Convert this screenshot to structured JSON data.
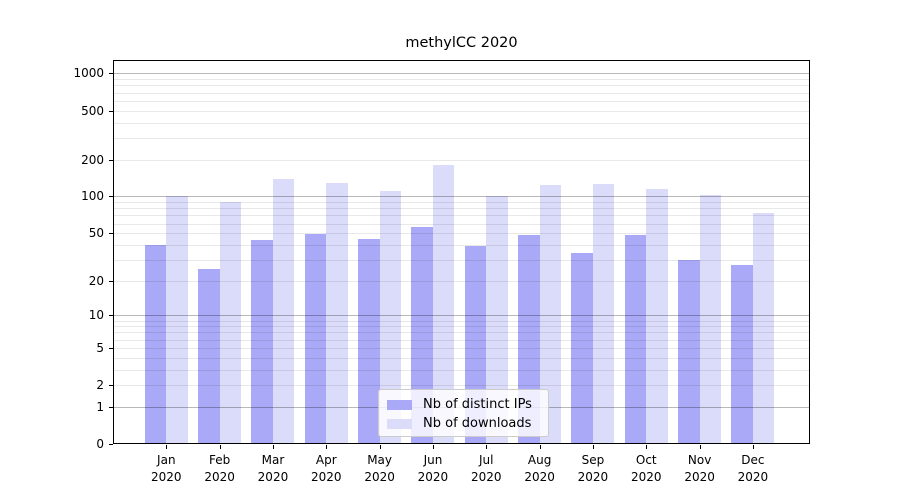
{
  "chart_data": {
    "type": "bar",
    "title": "methylCC 2020",
    "categories": [
      "Jan",
      "Feb",
      "Mar",
      "Apr",
      "May",
      "Jun",
      "Jul",
      "Aug",
      "Sep",
      "Oct",
      "Nov",
      "Dec"
    ],
    "year_label": "2020",
    "series": [
      {
        "name": "Nb of distinct IPs",
        "color": "#a9a9f7",
        "values": [
          40,
          25,
          44,
          49,
          45,
          56,
          39,
          48,
          34,
          48,
          30,
          27
        ]
      },
      {
        "name": "Nb of downloads",
        "color": "#dbdbfa",
        "values": [
          100,
          90,
          139,
          129,
          110,
          180,
          101,
          125,
          126,
          115,
          103,
          73
        ]
      }
    ],
    "xlabel": "",
    "ylabel": "",
    "yscale": "log10(1+x)",
    "yticks": [
      0,
      1,
      2,
      5,
      10,
      20,
      50,
      100,
      200,
      500,
      1000
    ],
    "ylim": [
      0,
      1285
    ],
    "grid": true,
    "grid_above_bars": true,
    "major_grid_color": "#b8b8b8",
    "minor_grid_color": "#e8e8e8",
    "axis_color": "#000000",
    "legend_position": "lower center"
  }
}
